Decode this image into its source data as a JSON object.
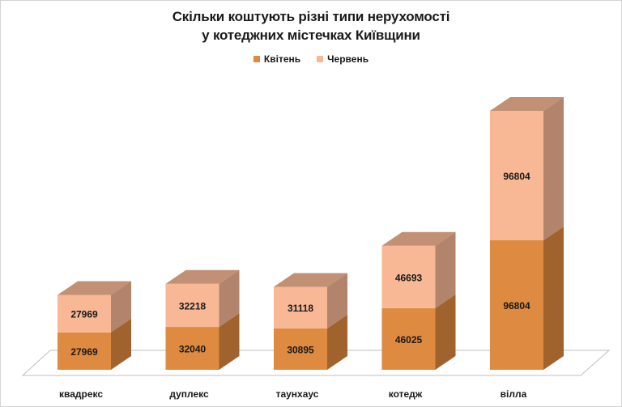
{
  "chart_data": {
    "type": "bar",
    "stacked": true,
    "three_d": true,
    "title_line1": "Скільки коштують різні типи нерухомості",
    "title_line2": "у котеджних містечках Київщини",
    "categories": [
      "квадрекс",
      "дуплекс",
      "таунхаус",
      "котедж",
      "вілла"
    ],
    "series": [
      {
        "name": "Квітень",
        "values": [
          27969,
          32040,
          30895,
          46025,
          96804
        ],
        "color": "#de8a40"
      },
      {
        "name": "Червень",
        "values": [
          27969,
          32218,
          31118,
          46693,
          96804
        ],
        "color": "#f8b896"
      }
    ],
    "legend_position": "top",
    "grid": false,
    "yaxis_visible": false
  }
}
